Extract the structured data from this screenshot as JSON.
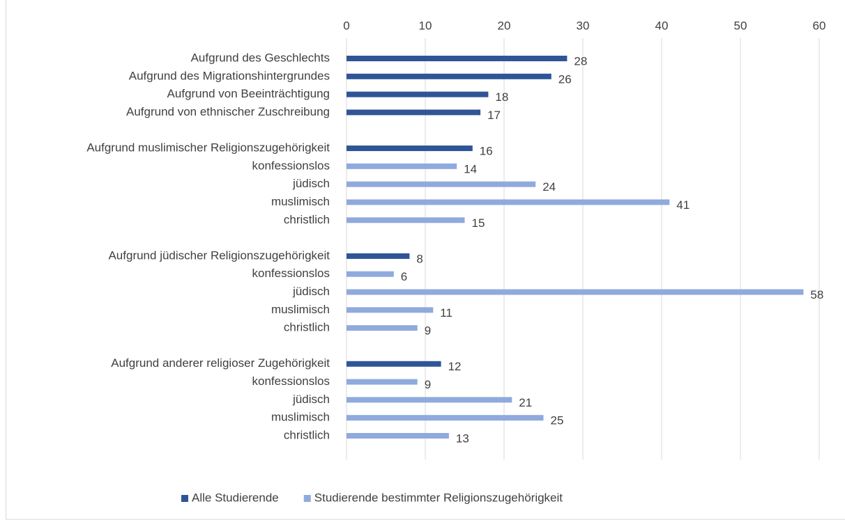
{
  "chart_data": {
    "type": "bar",
    "orientation": "horizontal",
    "categories": [
      "Aufgrund des Geschlechts",
      "Aufgrund des Migrationshintergrundes",
      "Aufgrund von Beeinträchtigung",
      "Aufgrund von ethnischer Zuschreibung",
      null,
      "Aufgrund muslimischer Religionszugehörigkeit",
      "konfessionslos",
      "jüdisch",
      "muslimisch",
      "christlich",
      null,
      "Aufgrund jüdischer Religionszugehörigkeit",
      "konfessionslos",
      "jüdisch",
      "muslimisch",
      "christlich",
      null,
      "Aufgrund anderer religioser Zugehörigkeit",
      "konfessionslos",
      "jüdisch",
      "muslimisch",
      "christlich"
    ],
    "series": [
      {
        "name": "Alle Studierende",
        "color": "#2f5597",
        "values": [
          28,
          26,
          18,
          17,
          null,
          16,
          null,
          null,
          null,
          null,
          null,
          8,
          null,
          null,
          null,
          null,
          null,
          12,
          null,
          null,
          null,
          null
        ]
      },
      {
        "name": "Studierende bestimmter Religionszugehörigkeit",
        "color": "#8faadc",
        "values": [
          null,
          null,
          null,
          null,
          null,
          null,
          14,
          24,
          41,
          15,
          null,
          null,
          6,
          58,
          11,
          9,
          null,
          null,
          9,
          21,
          25,
          13
        ]
      }
    ],
    "xlim": [
      0,
      60
    ],
    "xticks": [
      0,
      10,
      20,
      30,
      40,
      50,
      60
    ],
    "grid": true,
    "legend": "bottom"
  }
}
